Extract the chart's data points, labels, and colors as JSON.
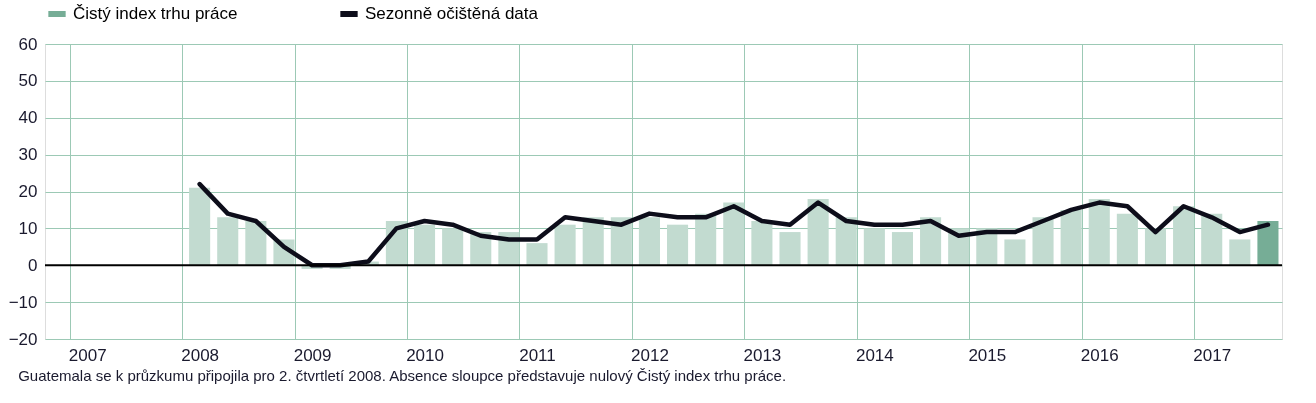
{
  "chart_data": {
    "type": "bar",
    "categories": [
      null,
      "2007",
      null,
      null,
      null,
      "2008",
      null,
      null,
      null,
      "2009",
      null,
      null,
      null,
      "2010",
      null,
      null,
      null,
      "2011",
      null,
      null,
      null,
      "2012",
      null,
      null,
      null,
      "2013",
      null,
      null,
      null,
      "2014",
      null,
      null,
      null,
      "2015",
      null,
      null,
      null,
      "2016",
      null,
      null,
      null,
      "2017",
      null,
      null
    ],
    "series": [
      {
        "name": "Čistý index trhu práce",
        "type": "bar",
        "color": "#76ad96",
        "colors": [
          "#c2dbd0",
          "#c2dbd0",
          "#c2dbd0",
          "#c2dbd0",
          "#c2dbd0",
          "#c2dbd0",
          "#c2dbd0",
          "#c2dbd0",
          "#c2dbd0",
          "#c2dbd0",
          "#c2dbd0",
          "#c2dbd0",
          "#c2dbd0",
          "#c2dbd0",
          "#c2dbd0",
          "#c2dbd0",
          "#c2dbd0",
          "#c2dbd0",
          "#c2dbd0",
          "#c2dbd0",
          "#c2dbd0",
          "#c2dbd0",
          "#c2dbd0",
          "#c2dbd0",
          "#c2dbd0",
          "#c2dbd0",
          "#c2dbd0",
          "#c2dbd0",
          "#c2dbd0",
          "#c2dbd0",
          "#c2dbd0",
          "#c2dbd0",
          "#c2dbd0",
          "#c2dbd0",
          "#c2dbd0",
          "#c2dbd0",
          "#c2dbd0",
          "#c2dbd0",
          "#c2dbd0",
          "#c2dbd0",
          "#c2dbd0",
          "#c2dbd0",
          "#c2dbd0",
          "#76ad96"
        ],
        "values": [
          null,
          null,
          null,
          null,
          null,
          21,
          13,
          12,
          7,
          -1,
          -1,
          1,
          12,
          11,
          10,
          9,
          9,
          6,
          11,
          13,
          13,
          13,
          11,
          14,
          17,
          12,
          9,
          18,
          13,
          10,
          9,
          13,
          10,
          10,
          7,
          13,
          15,
          18,
          14,
          10,
          16,
          14,
          7,
          12
        ]
      },
      {
        "name": "Sezonně očištěná data",
        "type": "line",
        "color": "#0d0d1a",
        "values": [
          null,
          null,
          null,
          null,
          null,
          22,
          14,
          12,
          5,
          0,
          0,
          1,
          10,
          12,
          11,
          8,
          7,
          7,
          13,
          12,
          11,
          14,
          13,
          13,
          16,
          12,
          11,
          17,
          12,
          11,
          11,
          12,
          8,
          9,
          9,
          12,
          15,
          17,
          16,
          9,
          16,
          13,
          9,
          11
        ]
      }
    ],
    "ylim": [
      -20,
      60
    ],
    "yticks": [
      -20,
      -10,
      0,
      10,
      20,
      30,
      40,
      50,
      60
    ],
    "grid": true,
    "legend": "top",
    "ref_lines": [
      {
        "axis": "y",
        "value": 0,
        "color": "#000000"
      }
    ],
    "annotations": [
      "Guatemala se k průzkumu připojila pro 2. čtvrtletí 2008.",
      "Absence sloupce představuje nulový Čistý index trhu práce."
    ]
  }
}
